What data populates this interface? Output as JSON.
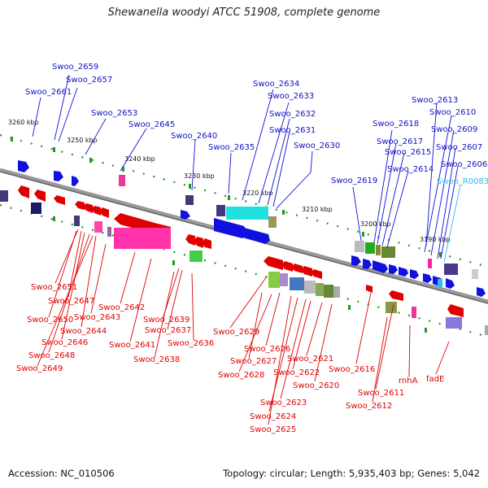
{
  "title": "Shewanella woodyi ATCC 51908, complete genome",
  "footer": {
    "accession": "Accession: NC_010506",
    "summary": "Topology: circular; Length: 5,935,403 bp; Genes: 5,042"
  },
  "colors": {
    "forward": "#1010e0",
    "reverse": "#e00000",
    "rna": "#33bbee",
    "backbone": "#888888",
    "tick": "#229922"
  },
  "scale_labels": [
    "3260 kbp",
    "3250 kbp",
    "3240 kbp",
    "3230 kbp",
    "3220 kbp",
    "3210 kbp",
    "3200 kbp",
    "3190 kbp"
  ],
  "labels_top": [
    "Swoo_2659",
    "Swoo_2657",
    "Swoo_2661",
    "Swoo_2653",
    "Swoo_2645",
    "Swoo_2640",
    "Swoo_2635",
    "Swoo_2634",
    "Swoo_2633",
    "Swoo_2632",
    "Swoo_2631",
    "Swoo_2630",
    "Swoo_2613",
    "Swoo_2610",
    "Swoo_2618",
    "Swoo_2609",
    "Swoo_2617",
    "Swoo_2615",
    "Swoo_2607",
    "Swoo_2606",
    "Swoo_2614",
    "Swoo_2619",
    "Swoo_R0083"
  ],
  "labels_bottom": [
    "Swoo_2651",
    "Swoo_2647",
    "Swoo_2650",
    "Swoo_2644",
    "Swoo_2646",
    "Swoo_2648",
    "Swoo_2649",
    "Swoo_2643",
    "Swoo_2642",
    "Swoo_2641",
    "Swoo_2639",
    "Swoo_2637",
    "Swoo_2638",
    "Swoo_2636",
    "Swoo_2629",
    "Swoo_2626",
    "Swoo_2627",
    "Swoo_2628",
    "Swoo_2621",
    "Swoo_2622",
    "Swoo_2620",
    "Swoo_2623",
    "Swoo_2624",
    "Swoo_2625",
    "Swoo_2616",
    "Swoo_2611",
    "Swoo_2612",
    "rnhA",
    "fadE"
  ]
}
